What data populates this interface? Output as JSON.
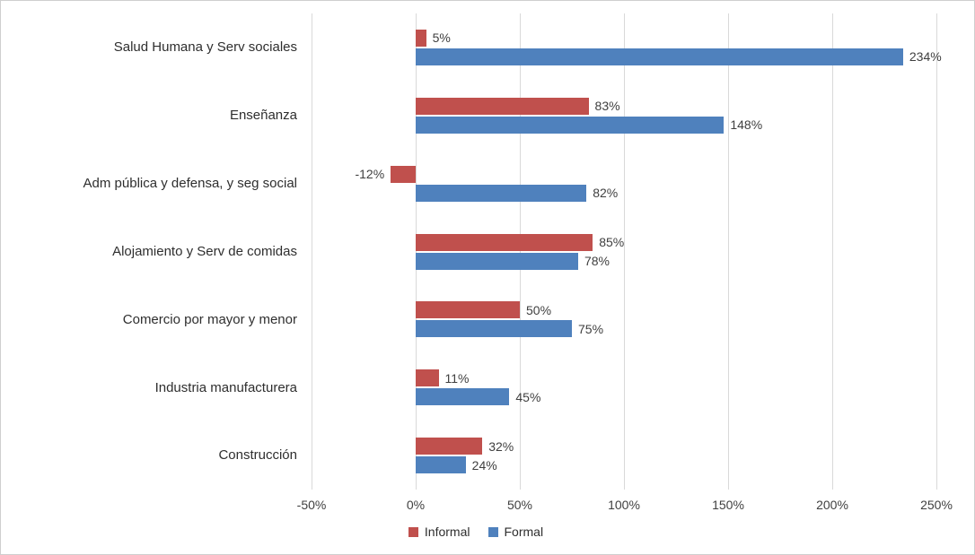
{
  "chart_data": {
    "type": "bar",
    "orientation": "horizontal",
    "title": "",
    "xlabel": "",
    "ylabel": "",
    "xlim": [
      -50,
      250
    ],
    "x_ticks": [
      -50,
      0,
      50,
      100,
      150,
      200,
      250
    ],
    "x_tick_labels": [
      "-50%",
      "0%",
      "50%",
      "100%",
      "150%",
      "200%",
      "250%"
    ],
    "grid": true,
    "legend_position": "bottom",
    "categories": [
      "Salud Humana y Serv sociales",
      "Enseñanza",
      "Adm pública y defensa, y seg social",
      "Alojamiento y Serv de comidas",
      "Comercio por mayor y menor",
      "Industria manufacturera",
      "Construcción"
    ],
    "series": [
      {
        "name": "Informal",
        "color": "#c0504d",
        "values": [
          5,
          83,
          -12,
          85,
          50,
          11,
          32
        ],
        "labels": [
          "5%",
          "83%",
          "-12%",
          "85%",
          "50%",
          "11%",
          "32%"
        ]
      },
      {
        "name": "Formal",
        "color": "#4f81bd",
        "values": [
          234,
          148,
          82,
          78,
          75,
          45,
          24
        ],
        "labels": [
          "234%",
          "148%",
          "82%",
          "78%",
          "75%",
          "45%",
          "24%"
        ]
      }
    ]
  }
}
